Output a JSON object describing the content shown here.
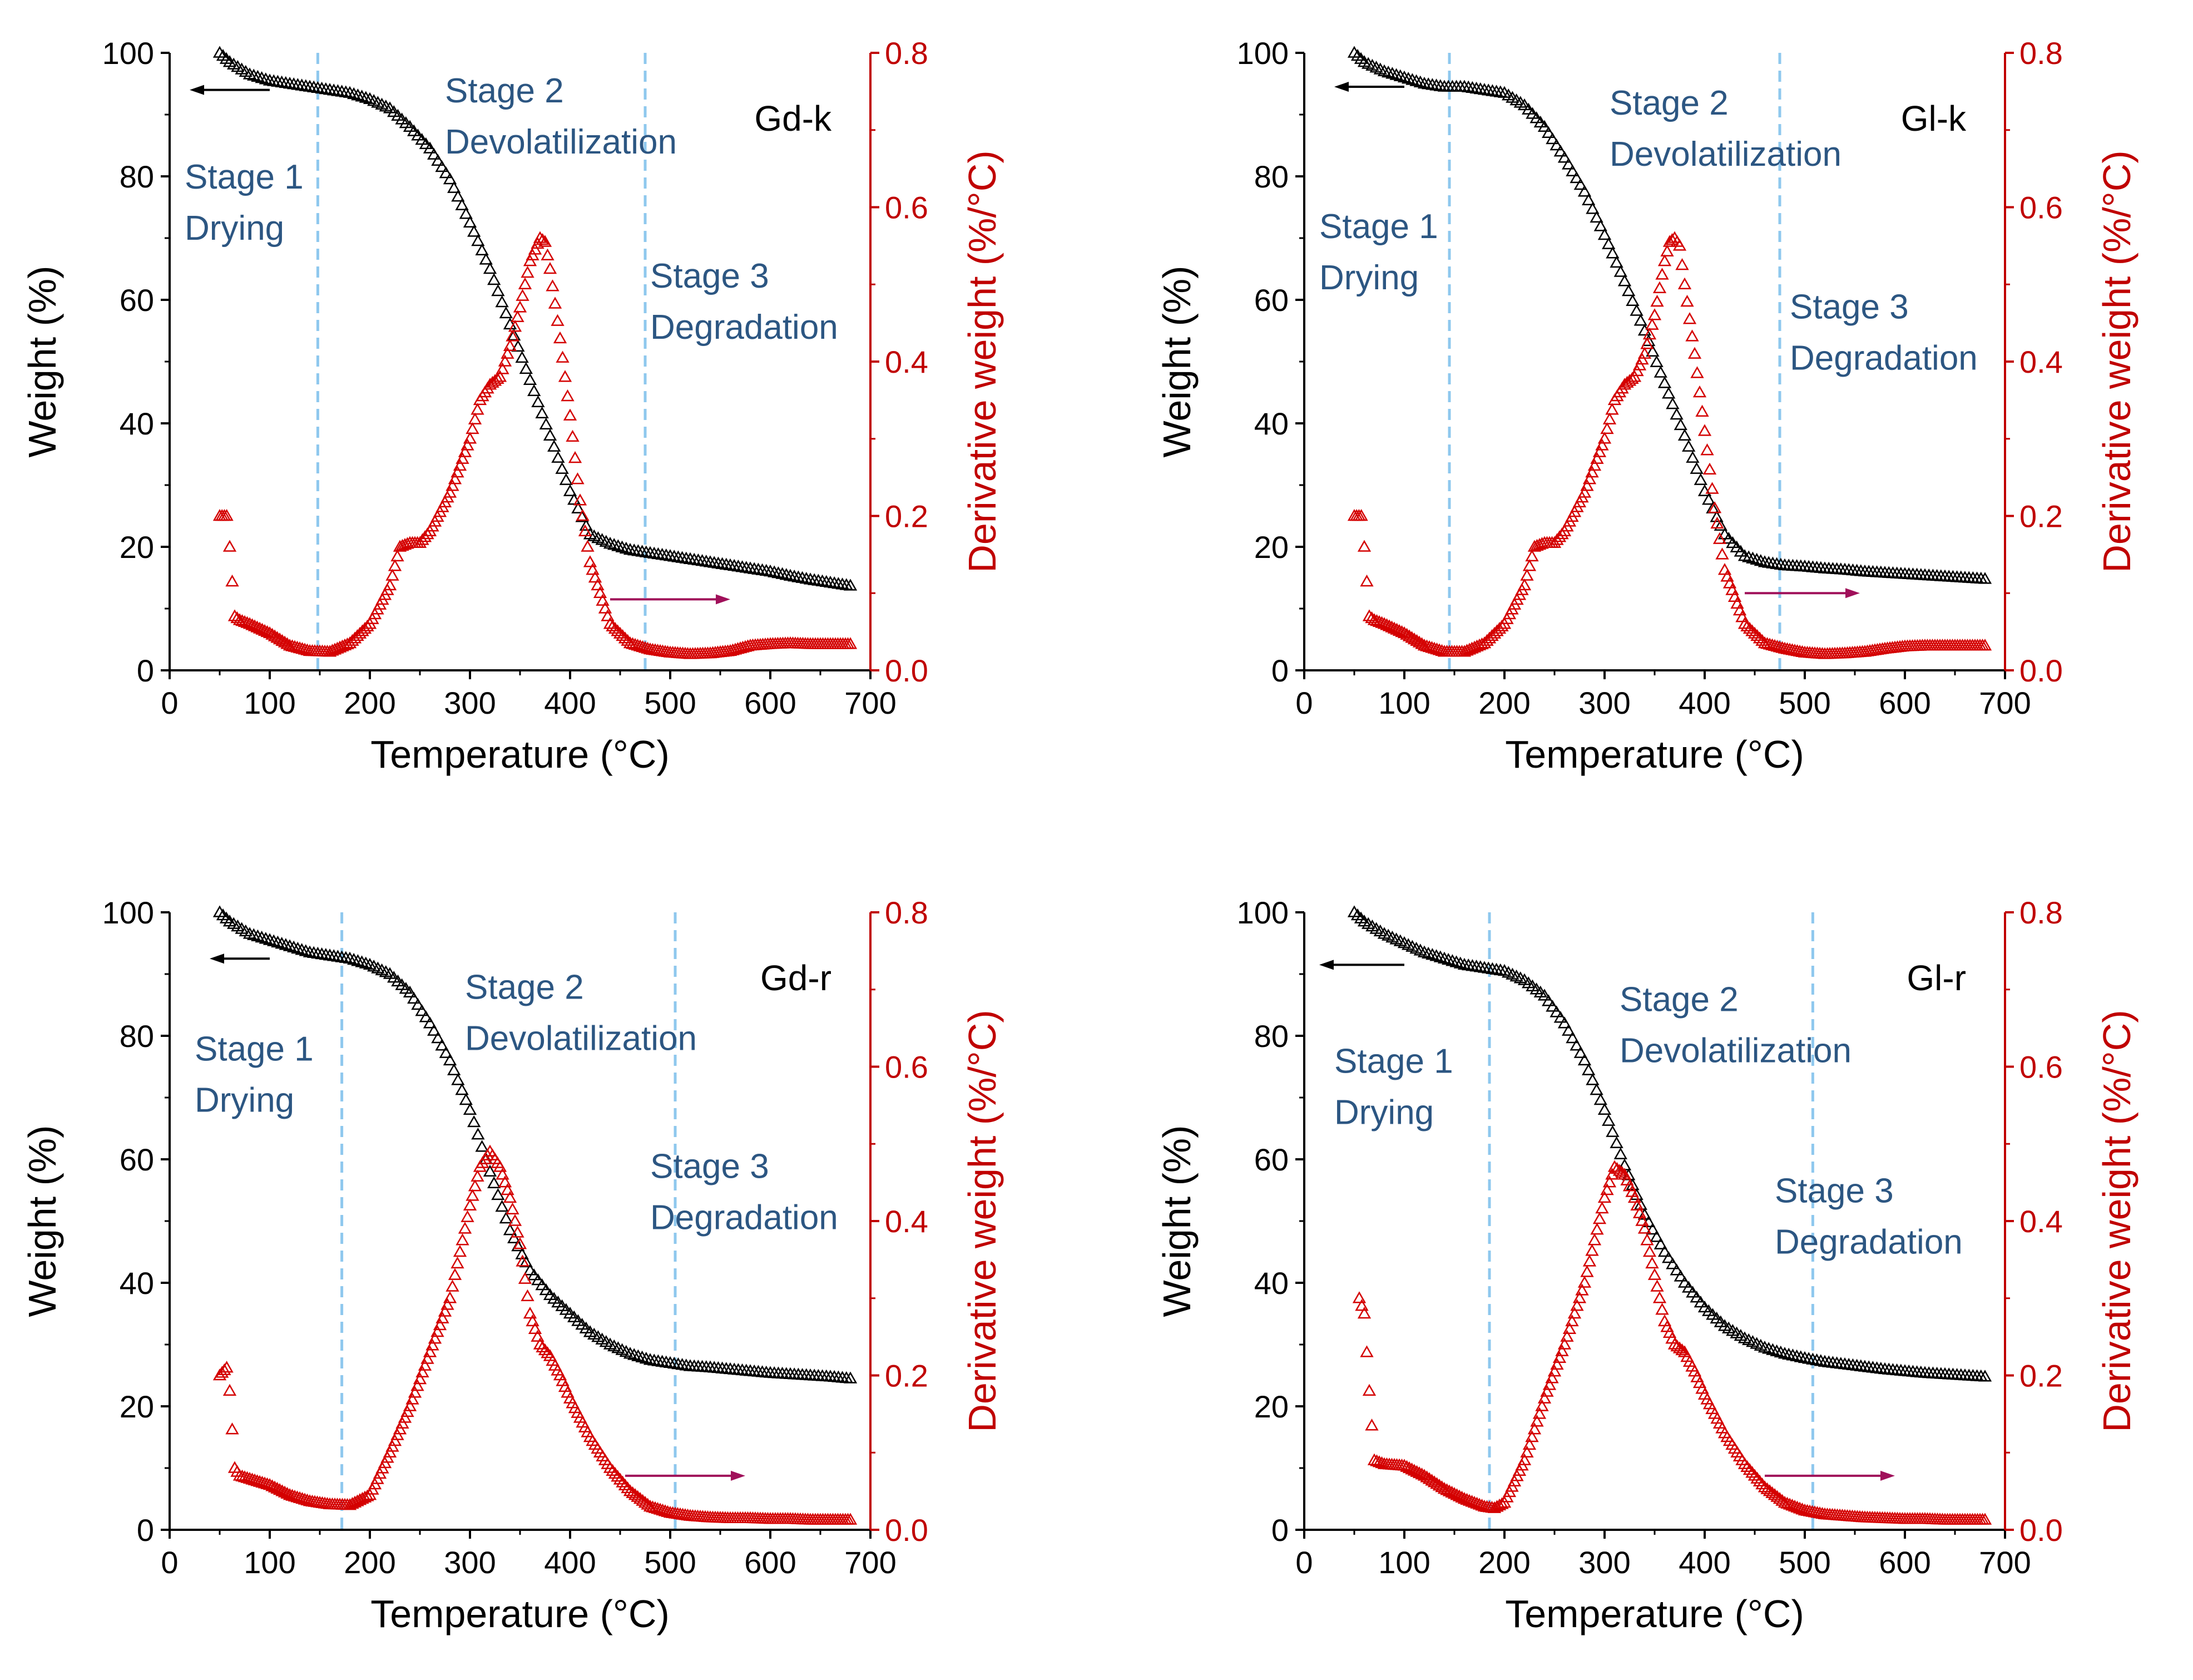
{
  "chart_data": [
    {
      "type": "scatter",
      "panel_label": "Gd-k",
      "xlabel": "Temperature (°C)",
      "ylabel": "Weight (%)",
      "y2label": "Derivative weight (%/°C)",
      "xlim": [
        0,
        700
      ],
      "ylim": [
        0,
        100
      ],
      "y2lim": [
        0,
        0.8
      ],
      "xticks": [
        "0",
        "100",
        "200",
        "300",
        "400",
        "500",
        "600",
        "700"
      ],
      "yticks": [
        "0",
        "20",
        "40",
        "60",
        "80",
        "100"
      ],
      "y2ticks": [
        "0.0",
        "0.2",
        "0.4",
        "0.6",
        "0.8"
      ],
      "stage_boundaries": [
        148,
        475
      ],
      "stage_labels": [
        {
          "lines": [
            "Stage 1",
            "Drying"
          ],
          "x": 15,
          "y": 78
        },
        {
          "lines": [
            "Stage 2",
            "Devolatilization"
          ],
          "x": 275,
          "y": 92
        },
        {
          "lines": [
            "Stage 3",
            "Degradation"
          ],
          "x": 480,
          "y": 62
        }
      ],
      "weight_arrow": {
        "from": 100,
        "to": 20,
        "y": 94
      },
      "deriv_arrow": {
        "from": 440,
        "to": 560,
        "y": 0.092
      },
      "weight": {
        "x": [
          50,
          60,
          80,
          100,
          120,
          140,
          160,
          180,
          200,
          220,
          240,
          260,
          280,
          300,
          320,
          340,
          360,
          380,
          400,
          420,
          440,
          460,
          480,
          500,
          520,
          540,
          560,
          580,
          600,
          620,
          640,
          660,
          680
        ],
        "y": [
          100,
          98.5,
          96.5,
          95.5,
          95,
          94.5,
          94,
          93.5,
          92.5,
          91,
          88,
          84.5,
          79.5,
          72.5,
          65,
          56,
          47,
          38,
          29,
          22,
          20.5,
          19.5,
          19,
          18.5,
          18,
          17.5,
          17,
          16.5,
          16,
          15.3,
          14.7,
          14.2,
          13.7
        ]
      },
      "derivative": {
        "x": [
          50,
          57,
          60,
          65,
          70,
          80,
          100,
          120,
          140,
          160,
          180,
          200,
          220,
          230,
          240,
          250,
          260,
          280,
          300,
          310,
          320,
          330,
          340,
          350,
          360,
          370,
          375,
          380,
          390,
          400,
          410,
          420,
          440,
          460,
          480,
          500,
          520,
          540,
          560,
          580,
          600,
          620,
          640,
          660,
          680
        ],
        "y": [
          0.2,
          0.2,
          0.16,
          0.07,
          0.065,
          0.06,
          0.048,
          0.032,
          0.025,
          0.024,
          0.035,
          0.06,
          0.11,
          0.16,
          0.165,
          0.165,
          0.18,
          0.23,
          0.3,
          0.35,
          0.37,
          0.38,
          0.42,
          0.47,
          0.53,
          0.56,
          0.555,
          0.52,
          0.43,
          0.33,
          0.22,
          0.14,
          0.06,
          0.035,
          0.027,
          0.023,
          0.021,
          0.022,
          0.025,
          0.032,
          0.034,
          0.035,
          0.034,
          0.034,
          0.034
        ]
      }
    },
    {
      "type": "scatter",
      "panel_label": "Gl-k",
      "xlabel": "Temperature (°C)",
      "ylabel": "Weight (%)",
      "y2label": "Derivative weight (%/°C)",
      "xlim": [
        0,
        700
      ],
      "ylim": [
        0,
        100
      ],
      "y2lim": [
        0,
        0.8
      ],
      "xticks": [
        "0",
        "100",
        "200",
        "300",
        "400",
        "500",
        "600",
        "700"
      ],
      "yticks": [
        "0",
        "20",
        "40",
        "60",
        "80",
        "100"
      ],
      "y2ticks": [
        "0.0",
        "0.2",
        "0.4",
        "0.6",
        "0.8"
      ],
      "stage_boundaries": [
        145,
        475
      ],
      "stage_labels": [
        {
          "lines": [
            "Stage 1",
            "Drying"
          ],
          "x": 15,
          "y": 70
        },
        {
          "lines": [
            "Stage 2",
            "Devolatilization"
          ],
          "x": 305,
          "y": 90
        },
        {
          "lines": [
            "Stage 3",
            "Degradation"
          ],
          "x": 485,
          "y": 57
        }
      ],
      "weight_arrow": {
        "from": 100,
        "to": 30,
        "y": 94.5
      },
      "deriv_arrow": {
        "from": 440,
        "to": 555,
        "y": 0.1
      },
      "weight": {
        "x": [
          50,
          60,
          80,
          100,
          120,
          140,
          160,
          180,
          200,
          220,
          240,
          260,
          280,
          300,
          320,
          340,
          360,
          380,
          400,
          420,
          440,
          460,
          480,
          500,
          520,
          540,
          560,
          580,
          600,
          620,
          640,
          660,
          680
        ],
        "y": [
          100,
          98.5,
          97,
          96,
          95,
          94.5,
          94.5,
          94,
          93.5,
          91.5,
          88,
          83,
          77.5,
          70.5,
          63,
          55,
          46.5,
          38,
          29,
          22,
          18.5,
          17.5,
          17,
          16.8,
          16.5,
          16.3,
          16,
          15.8,
          15.6,
          15.4,
          15.2,
          15,
          14.8
        ]
      },
      "derivative": {
        "x": [
          50,
          57,
          60,
          65,
          70,
          80,
          100,
          120,
          140,
          160,
          180,
          200,
          220,
          230,
          240,
          250,
          260,
          280,
          300,
          310,
          320,
          330,
          340,
          350,
          360,
          365,
          370,
          375,
          380,
          390,
          400,
          410,
          420,
          440,
          460,
          480,
          500,
          520,
          540,
          560,
          580,
          600,
          620,
          640,
          660,
          680
        ],
        "y": [
          0.2,
          0.2,
          0.16,
          0.07,
          0.065,
          0.06,
          0.048,
          0.032,
          0.024,
          0.024,
          0.035,
          0.06,
          0.11,
          0.16,
          0.165,
          0.165,
          0.18,
          0.23,
          0.3,
          0.35,
          0.37,
          0.38,
          0.41,
          0.46,
          0.53,
          0.555,
          0.56,
          0.55,
          0.5,
          0.41,
          0.31,
          0.21,
          0.13,
          0.06,
          0.035,
          0.028,
          0.023,
          0.021,
          0.022,
          0.024,
          0.028,
          0.031,
          0.032,
          0.032,
          0.032,
          0.032
        ]
      }
    },
    {
      "type": "scatter",
      "panel_label": "Gd-r",
      "xlabel": "Temperature (°C)",
      "ylabel": "Weight (%)",
      "y2label": "Derivative weight (%/°C)",
      "xlim": [
        0,
        700
      ],
      "ylim": [
        0,
        100
      ],
      "y2lim": [
        0,
        0.8
      ],
      "xticks": [
        "0",
        "100",
        "200",
        "300",
        "400",
        "500",
        "600",
        "700"
      ],
      "yticks": [
        "0",
        "20",
        "40",
        "60",
        "80",
        "100"
      ],
      "y2ticks": [
        "0.0",
        "0.2",
        "0.4",
        "0.6",
        "0.8"
      ],
      "stage_boundaries": [
        172,
        505
      ],
      "stage_labels": [
        {
          "lines": [
            "Stage 1",
            "Drying"
          ],
          "x": 25,
          "y": 76
        },
        {
          "lines": [
            "Stage 2",
            "Devolatilization"
          ],
          "x": 295,
          "y": 86
        },
        {
          "lines": [
            "Stage 3",
            "Degradation"
          ],
          "x": 480,
          "y": 57
        }
      ],
      "weight_arrow": {
        "from": 100,
        "to": 40,
        "y": 92.5
      },
      "deriv_arrow": {
        "from": 455,
        "to": 575,
        "y": 0.07
      },
      "weight": {
        "x": [
          50,
          60,
          80,
          100,
          120,
          140,
          160,
          180,
          200,
          220,
          240,
          260,
          280,
          300,
          320,
          340,
          360,
          380,
          400,
          420,
          440,
          460,
          480,
          500,
          520,
          540,
          560,
          580,
          600,
          620,
          640,
          660,
          680
        ],
        "y": [
          100,
          98.5,
          96.5,
          95.5,
          94.5,
          93.5,
          93,
          92.5,
          91.5,
          90,
          87,
          82,
          76,
          68,
          58,
          48.5,
          42,
          38,
          35,
          32,
          30,
          28.5,
          27.5,
          27,
          26.5,
          26.3,
          26,
          25.7,
          25.4,
          25.2,
          25,
          24.8,
          24.5
        ]
      },
      "derivative": {
        "x": [
          50,
          57,
          60,
          65,
          70,
          80,
          100,
          120,
          140,
          160,
          180,
          200,
          220,
          240,
          260,
          280,
          300,
          310,
          320,
          330,
          340,
          350,
          360,
          370,
          380,
          390,
          400,
          420,
          440,
          460,
          480,
          500,
          520,
          540,
          560,
          580,
          600,
          620,
          640,
          660,
          680
        ],
        "y": [
          0.2,
          0.21,
          0.18,
          0.08,
          0.07,
          0.066,
          0.058,
          0.045,
          0.037,
          0.033,
          0.032,
          0.045,
          0.1,
          0.16,
          0.23,
          0.3,
          0.42,
          0.47,
          0.49,
          0.47,
          0.43,
          0.37,
          0.28,
          0.24,
          0.225,
          0.2,
          0.17,
          0.12,
          0.08,
          0.05,
          0.03,
          0.022,
          0.018,
          0.016,
          0.015,
          0.015,
          0.014,
          0.014,
          0.013,
          0.013,
          0.013
        ]
      }
    },
    {
      "type": "scatter",
      "panel_label": "Gl-r",
      "xlabel": "Temperature (°C)",
      "ylabel": "Weight (%)",
      "y2label": "Derivative weight (%/°C)",
      "xlim": [
        0,
        700
      ],
      "ylim": [
        0,
        100
      ],
      "y2lim": [
        0,
        0.8
      ],
      "xticks": [
        "0",
        "100",
        "200",
        "300",
        "400",
        "500",
        "600",
        "700"
      ],
      "yticks": [
        "0",
        "20",
        "40",
        "60",
        "80",
        "100"
      ],
      "y2ticks": [
        "0.0",
        "0.2",
        "0.4",
        "0.6",
        "0.8"
      ],
      "stage_boundaries": [
        185,
        508
      ],
      "stage_labels": [
        {
          "lines": [
            "Stage 1",
            "Drying"
          ],
          "x": 30,
          "y": 74
        },
        {
          "lines": [
            "Stage 2",
            "Devolatilization"
          ],
          "x": 315,
          "y": 84
        },
        {
          "lines": [
            "Stage 3",
            "Degradation"
          ],
          "x": 470,
          "y": 53
        }
      ],
      "weight_arrow": {
        "from": 100,
        "to": 15,
        "y": 91.5
      },
      "deriv_arrow": {
        "from": 460,
        "to": 590,
        "y": 0.07
      },
      "weight": {
        "x": [
          50,
          60,
          80,
          100,
          120,
          140,
          160,
          180,
          200,
          220,
          240,
          260,
          280,
          300,
          320,
          340,
          360,
          380,
          400,
          420,
          440,
          460,
          480,
          500,
          520,
          540,
          560,
          580,
          600,
          620,
          640,
          660,
          680
        ],
        "y": [
          100,
          98.5,
          96.5,
          95,
          93.5,
          92.5,
          91.5,
          91,
          90.5,
          89,
          86.5,
          82,
          76,
          68,
          59,
          51,
          45,
          40,
          36,
          33,
          31,
          29.5,
          28.5,
          27.8,
          27.2,
          26.8,
          26.4,
          26,
          25.7,
          25.4,
          25.2,
          25,
          24.8
        ]
      },
      "derivative": {
        "x": [
          55,
          60,
          65,
          70,
          80,
          100,
          120,
          140,
          160,
          180,
          190,
          200,
          220,
          240,
          260,
          280,
          300,
          310,
          320,
          330,
          340,
          350,
          360,
          370,
          380,
          390,
          400,
          420,
          440,
          460,
          480,
          500,
          520,
          540,
          560,
          580,
          600,
          620,
          640,
          660,
          680
        ],
        "y": [
          0.3,
          0.28,
          0.18,
          0.09,
          0.085,
          0.083,
          0.07,
          0.053,
          0.04,
          0.03,
          0.028,
          0.035,
          0.09,
          0.17,
          0.24,
          0.32,
          0.43,
          0.47,
          0.46,
          0.43,
          0.39,
          0.33,
          0.27,
          0.24,
          0.23,
          0.205,
          0.175,
          0.125,
          0.085,
          0.055,
          0.035,
          0.025,
          0.02,
          0.018,
          0.016,
          0.015,
          0.014,
          0.014,
          0.013,
          0.013,
          0.013
        ]
      }
    }
  ]
}
